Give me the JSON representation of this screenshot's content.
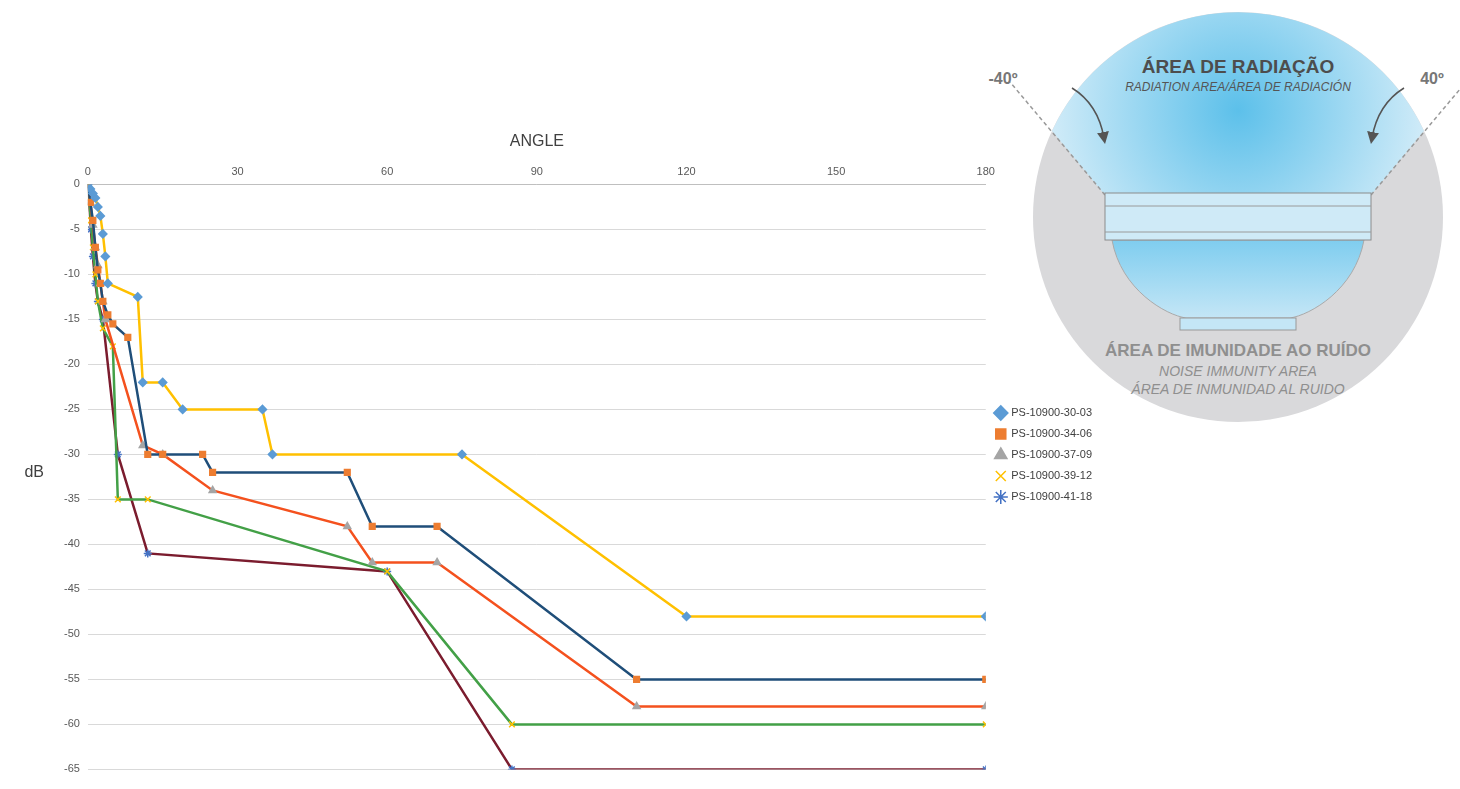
{
  "chart_data": {
    "type": "line",
    "x_label": "ANGLE",
    "y_label": "dB",
    "xlim": [
      0,
      180
    ],
    "xticks": [
      0,
      30,
      60,
      90,
      120,
      150,
      180
    ],
    "ylim": [
      -65,
      0
    ],
    "yticks": [
      0,
      -5,
      -10,
      -15,
      -20,
      -25,
      -30,
      -35,
      -40,
      -45,
      -50,
      -55,
      -60,
      -65
    ],
    "grid": "y",
    "legend": "right",
    "series": [
      {
        "name": "PS-10900-30-03",
        "color": "#FFC000",
        "marker": "diamond",
        "x": [
          0,
          0.5,
          1,
          1.5,
          2,
          2.5,
          3,
          3.5,
          4,
          10,
          11,
          15,
          19,
          35,
          37,
          75,
          120,
          180
        ],
        "values": [
          0,
          -0.5,
          -1,
          -1.5,
          -2.5,
          -3.5,
          -5.5,
          -8,
          -11,
          -12.5,
          -22,
          -22,
          -25,
          -25,
          -30,
          -30,
          -48,
          -48
        ]
      },
      {
        "name": "PS-10900-34-06",
        "color": "#1F4E79",
        "marker": "square",
        "x": [
          0,
          0.5,
          1,
          1.5,
          2,
          2.5,
          3,
          4,
          5,
          8,
          12,
          15,
          23,
          25,
          52,
          57,
          70,
          110,
          180
        ],
        "values": [
          0,
          -2,
          -4,
          -7,
          -9.5,
          -11,
          -13,
          -14.5,
          -15.5,
          -17,
          -30,
          -30,
          -30,
          -32,
          -32,
          -38,
          -38,
          -55,
          -55
        ]
      },
      {
        "name": "PS-10900-37-09",
        "color": "#F4511E",
        "marker": "triangle",
        "x": [
          0,
          0.5,
          1,
          1.5,
          2,
          2.5,
          3,
          3.5,
          11,
          15,
          25,
          52,
          57,
          70,
          110,
          180
        ],
        "values": [
          0,
          -2,
          -4.5,
          -7,
          -9,
          -11,
          -13,
          -15,
          -29,
          -30,
          -34,
          -38,
          -42,
          -42,
          -58,
          -58
        ]
      },
      {
        "name": "PS-10900-39-12",
        "color": "#43A047",
        "marker": "x",
        "x": [
          0,
          0.3,
          0.6,
          1,
          1.5,
          2,
          3,
          5,
          6,
          12,
          60,
          85,
          180
        ],
        "values": [
          0,
          -2,
          -4,
          -7,
          -10,
          -13,
          -16,
          -18,
          -35,
          -35,
          -43,
          -60,
          -60
        ]
      },
      {
        "name": "PS-10900-41-18",
        "color": "#7B1C2E",
        "marker": "star",
        "x": [
          0,
          0.3,
          0.6,
          1,
          1.5,
          2,
          3,
          6,
          12,
          60,
          85,
          180
        ],
        "values": [
          0,
          -2,
          -5,
          -8,
          -11,
          -13,
          -15,
          -30,
          -41,
          -43,
          -65,
          -65
        ]
      }
    ]
  },
  "diagram": {
    "angle_labels": [
      "-40º",
      "40º"
    ],
    "radiation_area": {
      "title": "ÁREA DE RADIAÇÃO",
      "subtitle": "RADIATION AREA/ÁREA DE RADIACIÓN"
    },
    "noise_immunity_area": {
      "title": "ÁREA DE IMUNIDADE AO RUÍDO",
      "subtitles": [
        "NOISE IMMUNITY AREA",
        "ÁREA DE INMUNIDAD AL RUIDO"
      ]
    }
  }
}
